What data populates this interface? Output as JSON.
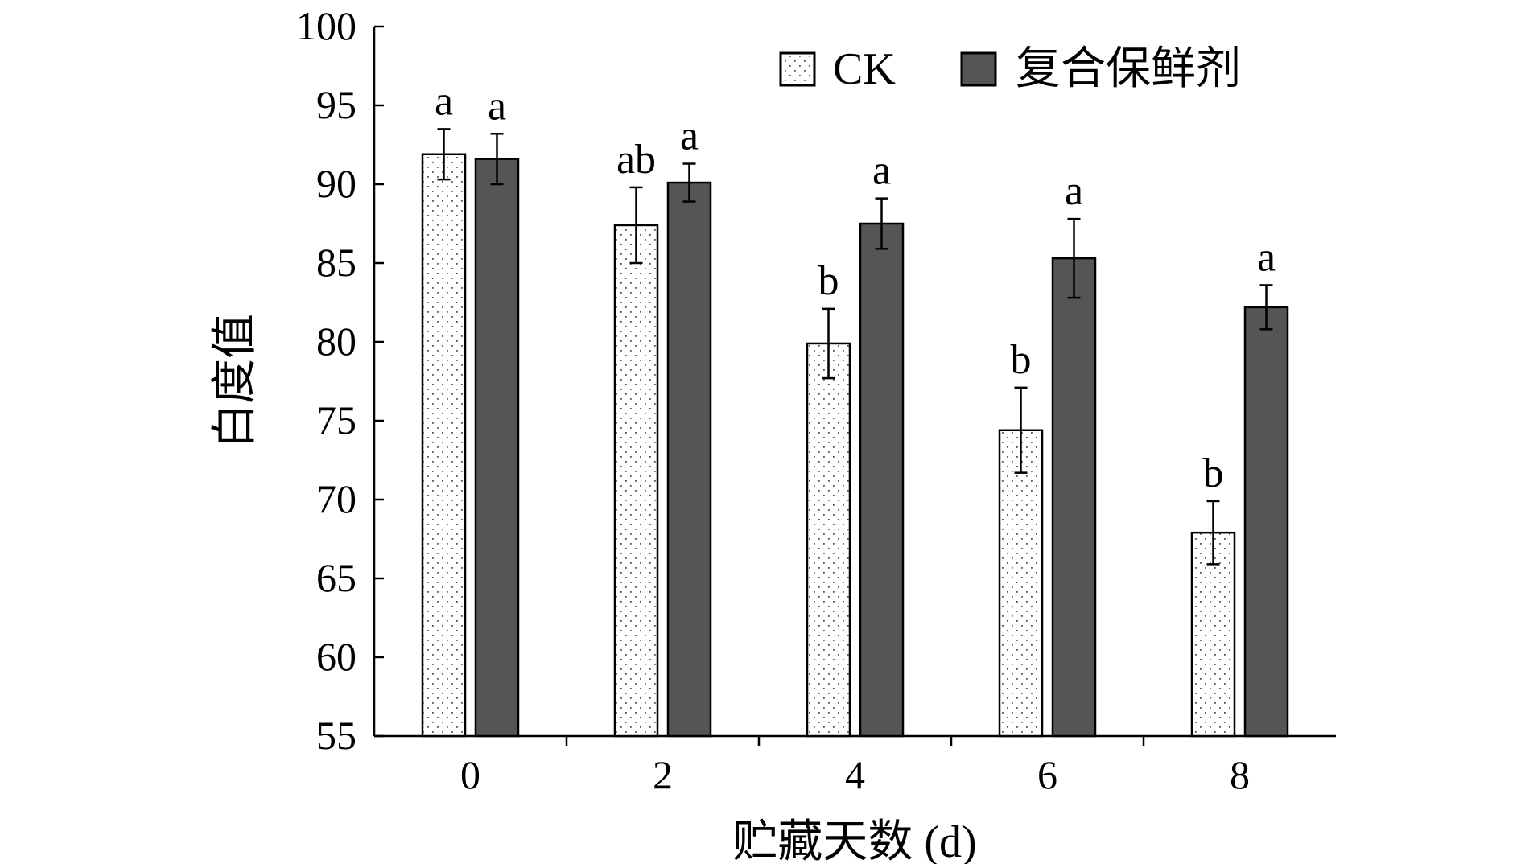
{
  "chart_data": {
    "type": "bar",
    "ylabel": "白度值",
    "xlabel": "贮藏天数 (d)",
    "ylim": [
      55,
      100
    ],
    "yticks": [
      55,
      60,
      65,
      70,
      75,
      80,
      85,
      90,
      95,
      100
    ],
    "categories": [
      "0",
      "2",
      "4",
      "6",
      "8"
    ],
    "grid": false,
    "legend_position": "top-right",
    "series": [
      {
        "name": "CK",
        "values": [
          91.9,
          87.4,
          79.9,
          74.4,
          67.9
        ],
        "errors": [
          1.6,
          2.4,
          2.2,
          2.7,
          2.0
        ],
        "letters": [
          "a",
          "ab",
          "b",
          "b",
          "b"
        ],
        "fill": "#ffffff",
        "pattern": "dotted",
        "color": "#000000"
      },
      {
        "name": "复合保鲜剂",
        "values": [
          91.6,
          90.1,
          87.5,
          85.3,
          82.2
        ],
        "errors": [
          1.6,
          1.2,
          1.6,
          2.5,
          1.4
        ],
        "letters": [
          "a",
          "a",
          "a",
          "a",
          "a"
        ],
        "fill": "#555555",
        "pattern": "solid",
        "color": "#000000"
      }
    ]
  }
}
